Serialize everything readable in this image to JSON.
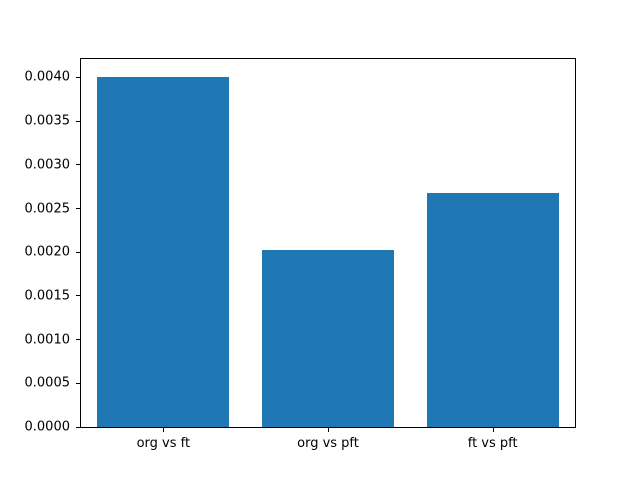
{
  "chart_data": {
    "type": "bar",
    "title": "",
    "xlabel": "",
    "ylabel": "",
    "categories": [
      "org vs ft",
      "org vs pft",
      "ft vs pft"
    ],
    "values": [
      0.00401,
      0.00202,
      0.00268
    ],
    "ylim": [
      0,
      0.004211
    ],
    "yticks": [
      0.0,
      0.0005,
      0.001,
      0.0015,
      0.002,
      0.0025,
      0.003,
      0.0035,
      0.004
    ],
    "ytick_format_decimals": 4,
    "bar_color": "#1f77b4",
    "bar_width_fraction": 0.8,
    "grid": false,
    "legend": false,
    "background_color": "#ffffff",
    "spine_color": "#000000"
  }
}
